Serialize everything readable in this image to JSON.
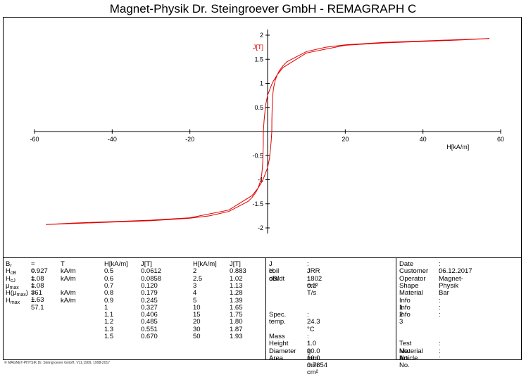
{
  "title": "Magnet-Physik Dr. Steingroever GmbH - REMAGRAPH C",
  "chart_data": {
    "type": "line",
    "xlabel": "H[kA/m]",
    "ylabel": "J[T]",
    "xlim": [
      -60,
      60
    ],
    "ylim": [
      -2,
      2
    ],
    "x_ticks": [
      "-60",
      "-40",
      "-20",
      "20",
      "40",
      "60"
    ],
    "y_ticks": [
      "2",
      "1.5",
      "1",
      "0.5",
      "-0.5",
      "-1",
      "-1.5",
      "-2"
    ],
    "grid": false,
    "series": [
      {
        "color": "#e00000",
        "x": [
          57.1,
          50,
          40,
          30,
          20,
          15,
          10,
          5,
          4,
          3,
          2.5,
          2,
          1.5,
          1.3,
          1.2,
          1.1,
          1.08,
          0.9,
          0.5,
          0,
          -0.5,
          -1.08,
          -1.5,
          -2.5,
          -4,
          -10,
          -20,
          -30,
          -40,
          -50,
          -57.1,
          -50,
          -40,
          -30,
          -20,
          -15,
          -10,
          -5,
          -4,
          -3,
          -2.5,
          -2,
          -1.5,
          -1.3,
          -1.2,
          -1.1,
          -1.08,
          -0.9,
          -0.5,
          0,
          0.5,
          1.08,
          1.5,
          2.5,
          4,
          10,
          20,
          30,
          40,
          50,
          57.1
        ],
        "y": [
          1.93,
          1.91,
          1.88,
          1.85,
          1.8,
          1.75,
          1.66,
          1.45,
          1.37,
          1.26,
          1.18,
          1.07,
          0.89,
          0.72,
          0.55,
          0.25,
          0.0,
          -0.22,
          -0.55,
          -0.75,
          -0.86,
          -0.98,
          -1.05,
          -1.18,
          -1.33,
          -1.63,
          -1.79,
          -1.84,
          -1.87,
          -1.9,
          -1.93,
          -1.91,
          -1.88,
          -1.85,
          -1.8,
          -1.75,
          -1.66,
          -1.45,
          -1.37,
          -1.26,
          -1.18,
          -1.07,
          -0.89,
          -0.72,
          -0.55,
          -0.25,
          0.0,
          0.22,
          0.55,
          0.75,
          0.86,
          0.98,
          1.05,
          1.18,
          1.33,
          1.63,
          1.79,
          1.84,
          1.87,
          1.9,
          1.93
        ]
      }
    ]
  },
  "results": [
    {
      "sym": "B",
      "sub": "r",
      "val": "= 0.927",
      "unit": "T"
    },
    {
      "sym": "H",
      "sub": "cB",
      "val": "= 1.08",
      "unit": "kA/m"
    },
    {
      "sym": "H",
      "sub": "cJ",
      "val": "= 1.08",
      "unit": "kA/m"
    },
    {
      "sym": "μ",
      "sub": "max",
      "val": "= 361",
      "unit": ""
    },
    {
      "sym": "H(μ",
      "sub": "max",
      "post": ")",
      "val": "= 1.63",
      "unit": "kA/m"
    },
    {
      "sym": "H",
      "sub": "max",
      "val": "= 57.1",
      "unit": "kA/m"
    }
  ],
  "table1": {
    "headers": [
      "H[kA/m]",
      "J[T]"
    ],
    "rows": [
      [
        "0.5",
        "0.0612"
      ],
      [
        "0.6",
        "0.0858"
      ],
      [
        "0.7",
        "0.120"
      ],
      [
        "0.8",
        "0.179"
      ],
      [
        "0.9",
        "0.245"
      ],
      [
        "1",
        "0.327"
      ],
      [
        "1.1",
        "0.406"
      ],
      [
        "1.2",
        "0.485"
      ],
      [
        "1.3",
        "0.551"
      ],
      [
        "1.5",
        "0.670"
      ]
    ]
  },
  "table2": {
    "headers": [
      "H[kA/m]",
      "J[T]"
    ],
    "rows": [
      [
        "2",
        "0.883"
      ],
      [
        "2.5",
        "1.02"
      ],
      [
        "3",
        "1.13"
      ],
      [
        "4",
        "1.28"
      ],
      [
        "5",
        "1.39"
      ],
      [
        "10",
        "1.65"
      ],
      [
        "15",
        "1.75"
      ],
      [
        "20",
        "1.80"
      ],
      [
        "30",
        "1.87"
      ],
      [
        "50",
        "1.93"
      ]
    ]
  },
  "measurement": {
    "top": [
      {
        "label": "J coil",
        "value": ": JRR"
      },
      {
        "label": "H coil",
        "value": ": 1802 cm²"
      },
      {
        "label": "dB/dt",
        "value": ": 0.2 T/s"
      }
    ],
    "temp": {
      "label": "Spec. temp.",
      "value": ": 24.3 °C"
    },
    "bottom": [
      {
        "label": "Mass",
        "value": ": 1.0 g"
      },
      {
        "label": "Height",
        "value": ": 90.0 mm"
      },
      {
        "label": "Diameter",
        "value": ": 10.0 mm"
      },
      {
        "label": "Area",
        "value": ": 0.7854 cm²"
      }
    ]
  },
  "info": {
    "top": [
      {
        "label": "Date",
        "value": ": 06.12.2017"
      },
      {
        "label": "Customer",
        "value": ": Magnet-Physik"
      },
      {
        "label": "Operator",
        "value": ":"
      },
      {
        "label": "Shape",
        "value": ": Bar"
      },
      {
        "label": "Material",
        "value": ":"
      },
      {
        "label": "Info 1",
        "value": ":"
      },
      {
        "label": "Info 2",
        "value": ":"
      },
      {
        "label": "Info 3",
        "value": ":"
      }
    ],
    "bottom": [
      {
        "label": "Test No.",
        "value": ":"
      },
      {
        "label": "Material No.",
        "value": ":"
      },
      {
        "label": "Article No.",
        "value": ":"
      }
    ]
  },
  "footer": "© MAGNET-PHYSIK Dr. Steingroever GmbH, V11.1909, 1998-2017"
}
